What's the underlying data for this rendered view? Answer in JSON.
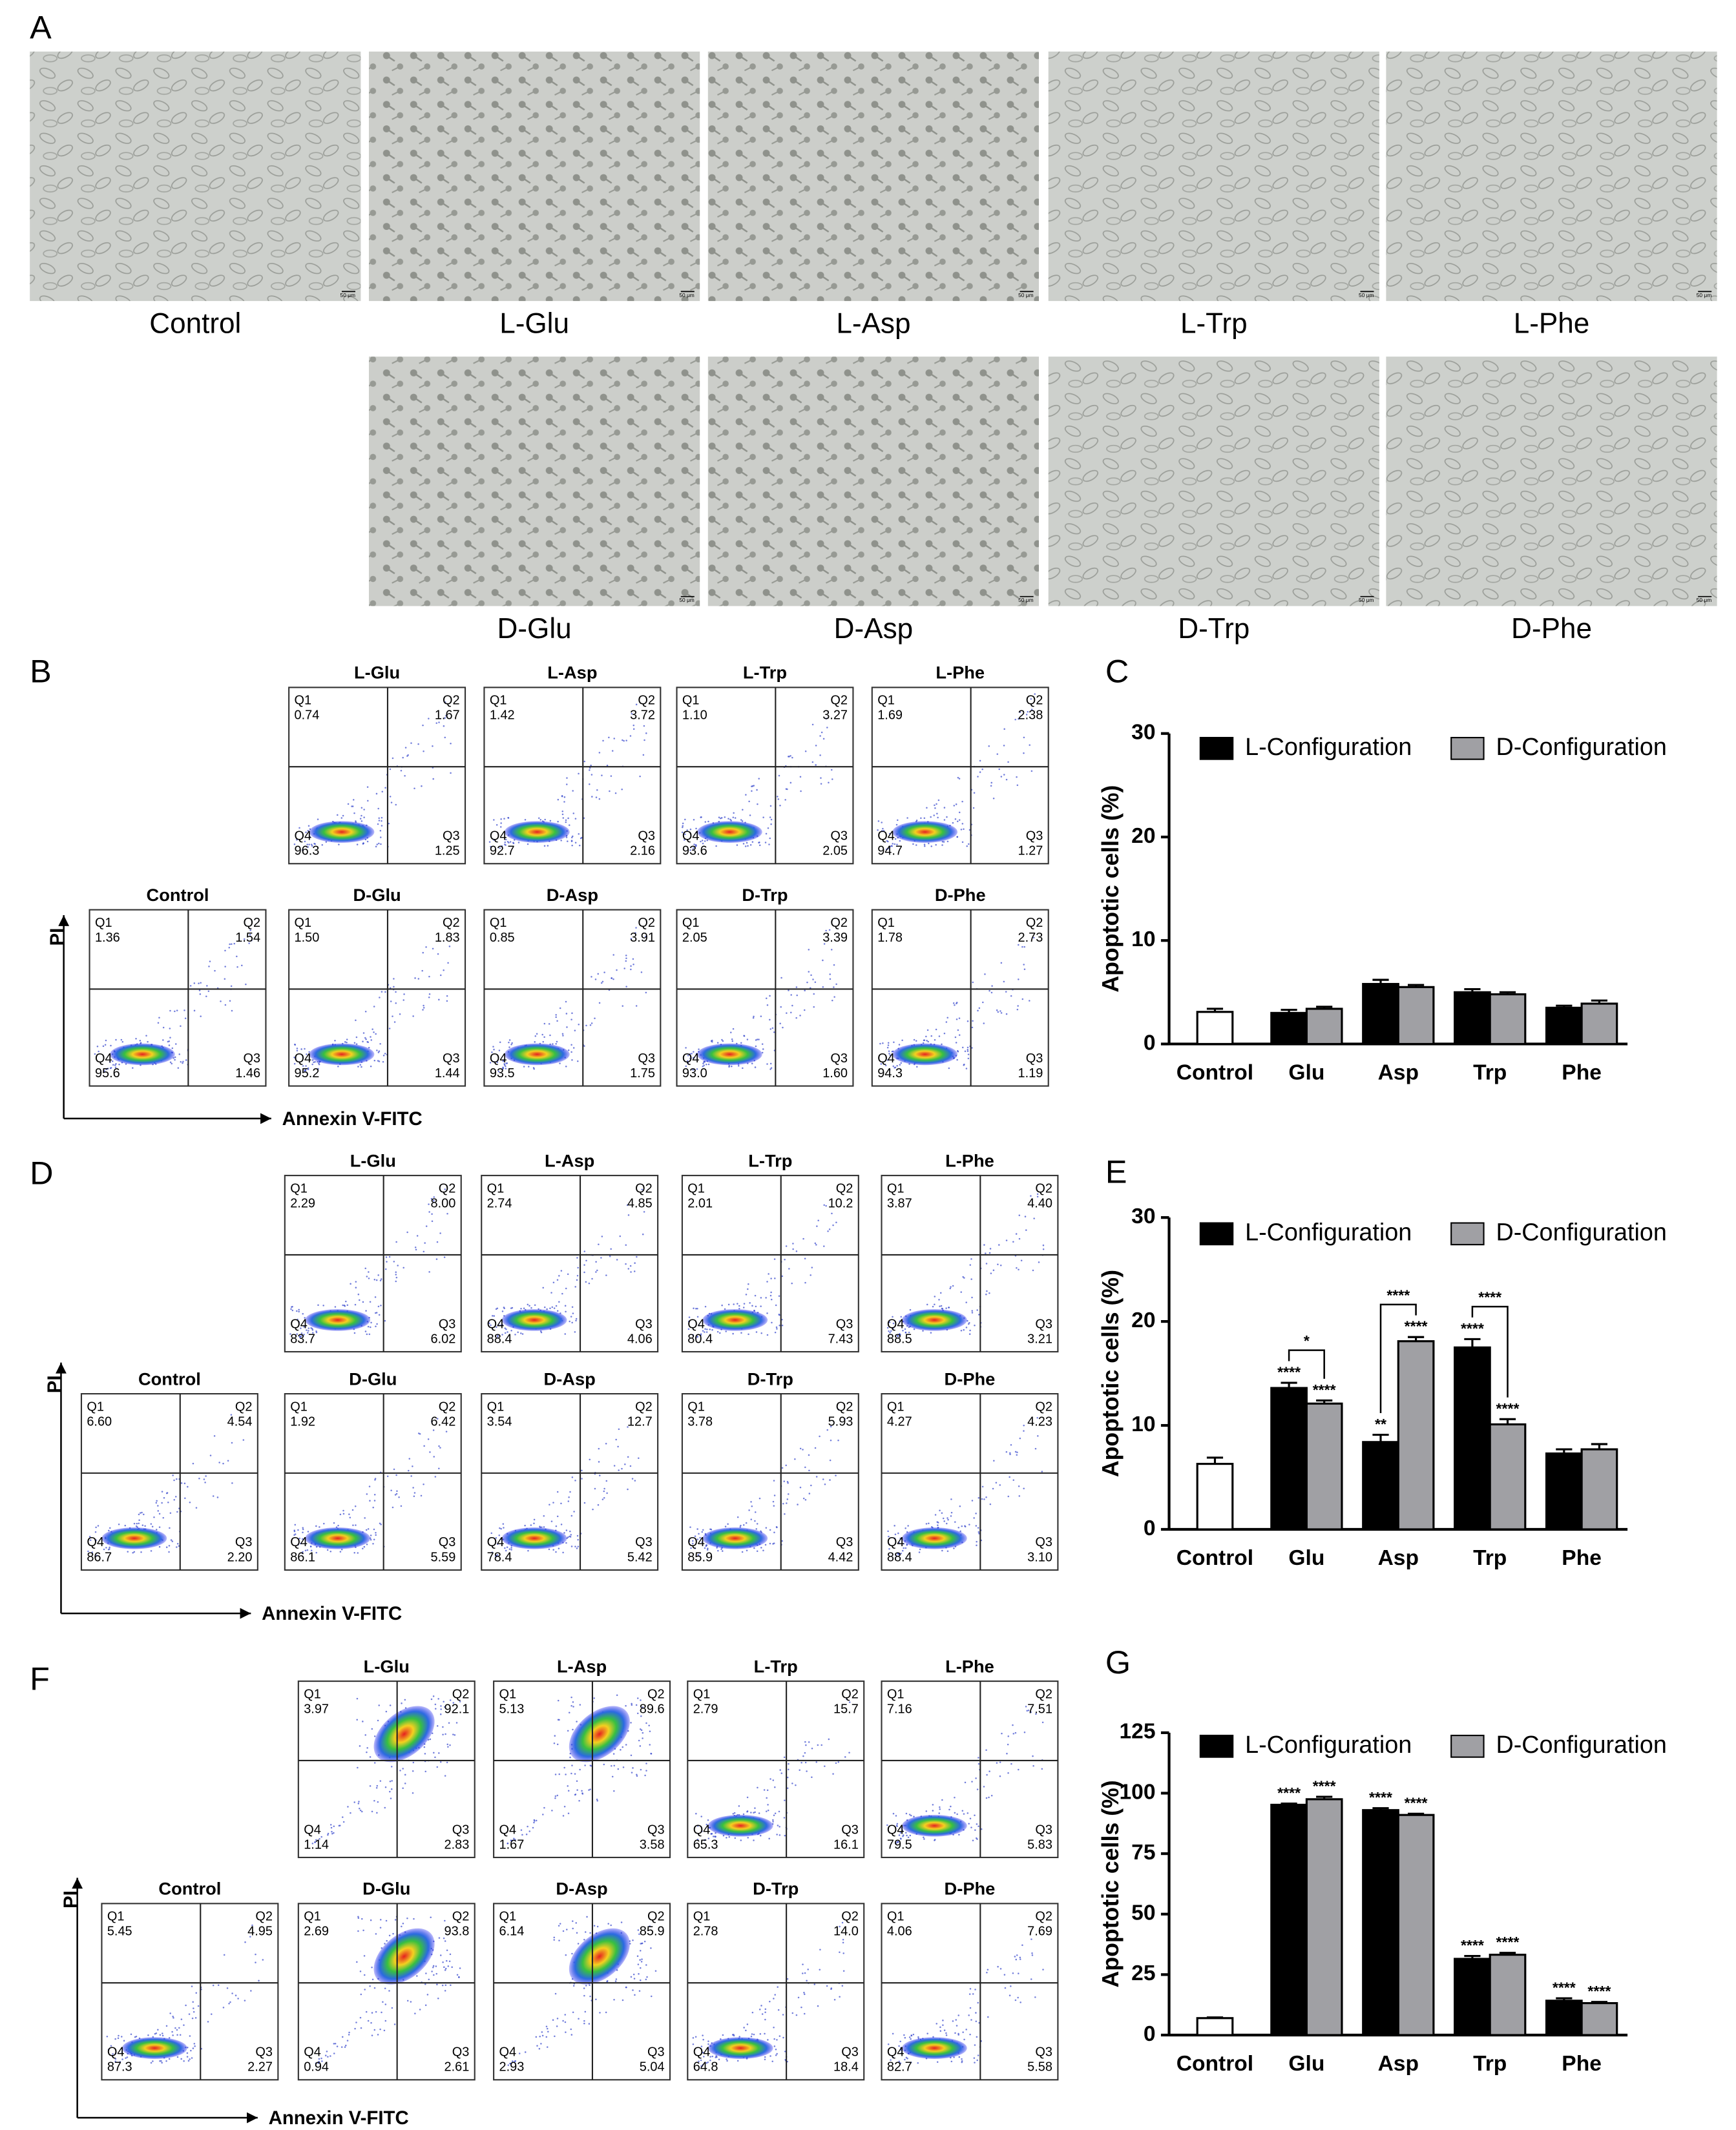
{
  "panel_labels": [
    "A",
    "B",
    "C",
    "D",
    "E",
    "F",
    "G"
  ],
  "micrographs": {
    "row1": [
      "Control",
      "L-Glu",
      "L-Asp",
      "L-Trp",
      "L-Phe"
    ],
    "row2": [
      "D-Glu",
      "D-Asp",
      "D-Trp",
      "D-Phe"
    ],
    "scale_bar": "50 μm"
  },
  "quadrant_names": [
    "Q1",
    "Q2",
    "Q3",
    "Q4"
  ],
  "flow": [
    {
      "y_label": "PI",
      "x_label": "Annexin V-FITC",
      "rows": [
        [
          {
            "title": "L-Glu",
            "Q1": "0.74",
            "Q2": "1.67",
            "Q3": "1.25",
            "Q4": "96.3"
          },
          {
            "title": "L-Asp",
            "Q1": "1.42",
            "Q2": "3.72",
            "Q3": "2.16",
            "Q4": "92.7"
          },
          {
            "title": "L-Trp",
            "Q1": "1.10",
            "Q2": "3.27",
            "Q3": "2.05",
            "Q4": "93.6"
          },
          {
            "title": "L-Phe",
            "Q1": "1.69",
            "Q2": "2.38",
            "Q3": "1.27",
            "Q4": "94.7"
          }
        ],
        [
          {
            "title": "Control",
            "Q1": "1.36",
            "Q2": "1.54",
            "Q3": "1.46",
            "Q4": "95.6"
          },
          {
            "title": "D-Glu",
            "Q1": "1.50",
            "Q2": "1.83",
            "Q3": "1.44",
            "Q4": "95.2"
          },
          {
            "title": "D-Asp",
            "Q1": "0.85",
            "Q2": "3.91",
            "Q3": "1.75",
            "Q4": "93.5"
          },
          {
            "title": "D-Trp",
            "Q1": "2.05",
            "Q2": "3.39",
            "Q3": "1.60",
            "Q4": "93.0"
          },
          {
            "title": "D-Phe",
            "Q1": "1.78",
            "Q2": "2.73",
            "Q3": "1.19",
            "Q4": "94.3"
          }
        ]
      ]
    },
    {
      "y_label": "PI",
      "x_label": "Annexin V-FITC",
      "rows": [
        [
          {
            "title": "L-Glu",
            "Q1": "2.29",
            "Q2": "8.00",
            "Q3": "6.02",
            "Q4": "83.7"
          },
          {
            "title": "L-Asp",
            "Q1": "2.74",
            "Q2": "4.85",
            "Q3": "4.06",
            "Q4": "88.4"
          },
          {
            "title": "L-Trp",
            "Q1": "2.01",
            "Q2": "10.2",
            "Q3": "7.43",
            "Q4": "80.4"
          },
          {
            "title": "L-Phe",
            "Q1": "3.87",
            "Q2": "4.40",
            "Q3": "3.21",
            "Q4": "88.5"
          }
        ],
        [
          {
            "title": "Control",
            "Q1": "6.60",
            "Q2": "4.54",
            "Q3": "2.20",
            "Q4": "86.7"
          },
          {
            "title": "D-Glu",
            "Q1": "1.92",
            "Q2": "6.42",
            "Q3": "5.59",
            "Q4": "86.1"
          },
          {
            "title": "D-Asp",
            "Q1": "3.54",
            "Q2": "12.7",
            "Q3": "5.42",
            "Q4": "78.4"
          },
          {
            "title": "D-Trp",
            "Q1": "3.78",
            "Q2": "5.93",
            "Q3": "4.42",
            "Q4": "85.9"
          },
          {
            "title": "D-Phe",
            "Q1": "4.27",
            "Q2": "4.23",
            "Q3": "3.10",
            "Q4": "88.4"
          }
        ]
      ]
    },
    {
      "y_label": "PI",
      "x_label": "Annexin V-FITC",
      "rows": [
        [
          {
            "title": "L-Glu",
            "Q1": "3.97",
            "Q2": "92.1",
            "Q3": "2.83",
            "Q4": "1.14"
          },
          {
            "title": "L-Asp",
            "Q1": "5.13",
            "Q2": "89.6",
            "Q3": "3.58",
            "Q4": "1.67"
          },
          {
            "title": "L-Trp",
            "Q1": "2.79",
            "Q2": "15.7",
            "Q3": "16.1",
            "Q4": "65.3"
          },
          {
            "title": "L-Phe",
            "Q1": "7.16",
            "Q2": "7.51",
            "Q3": "5.83",
            "Q4": "79.5"
          }
        ],
        [
          {
            "title": "Control",
            "Q1": "5.45",
            "Q2": "4.95",
            "Q3": "2.27",
            "Q4": "87.3"
          },
          {
            "title": "D-Glu",
            "Q1": "2.69",
            "Q2": "93.8",
            "Q3": "2.61",
            "Q4": "0.94"
          },
          {
            "title": "D-Asp",
            "Q1": "6.14",
            "Q2": "85.9",
            "Q3": "5.04",
            "Q4": "2.93"
          },
          {
            "title": "D-Trp",
            "Q1": "2.78",
            "Q2": "14.0",
            "Q3": "18.4",
            "Q4": "64.8"
          },
          {
            "title": "D-Phe",
            "Q1": "4.06",
            "Q2": "7.69",
            "Q3": "5.58",
            "Q4": "82.7"
          }
        ]
      ]
    }
  ],
  "chart_data": [
    {
      "type": "bar",
      "y_label": "Apoptotic cells (%)",
      "categories": [
        "Control",
        "Glu",
        "Asp",
        "Trp",
        "Phe"
      ],
      "ylim": [
        0,
        30
      ],
      "yticks": [
        0,
        10,
        20,
        30
      ],
      "control": {
        "value": 3.1,
        "error": 0.3,
        "color": "#ffffff"
      },
      "series": [
        {
          "name": "L-Configuration",
          "color": "#000000",
          "values": [
            null,
            3.0,
            5.8,
            5.0,
            3.5
          ],
          "errors": [
            null,
            0.3,
            0.4,
            0.3,
            0.2
          ]
        },
        {
          "name": "D-Configuration",
          "color": "#a0a0a4",
          "values": [
            null,
            3.4,
            5.5,
            4.8,
            3.9
          ],
          "errors": [
            null,
            0.2,
            0.2,
            0.2,
            0.3
          ]
        }
      ]
    },
    {
      "type": "bar",
      "y_label": "Apoptotic cells (%)",
      "categories": [
        "Control",
        "Glu",
        "Asp",
        "Trp",
        "Phe"
      ],
      "ylim": [
        0,
        30
      ],
      "yticks": [
        0,
        10,
        20,
        30
      ],
      "control": {
        "value": 6.3,
        "error": 0.6,
        "color": "#ffffff"
      },
      "series": [
        {
          "name": "L-Configuration",
          "color": "#000000",
          "values": [
            null,
            13.6,
            8.4,
            17.5,
            7.3
          ],
          "errors": [
            null,
            0.5,
            0.7,
            0.8,
            0.4
          ],
          "sig": [
            null,
            "****",
            "**",
            "****",
            null
          ]
        },
        {
          "name": "D-Configuration",
          "color": "#a0a0a4",
          "values": [
            null,
            12.1,
            18.1,
            10.1,
            7.7
          ],
          "errors": [
            null,
            0.3,
            0.4,
            0.5,
            0.5
          ],
          "sig": [
            null,
            "****",
            "****",
            "****",
            null
          ]
        }
      ],
      "brackets": [
        {
          "category": "Glu",
          "label": "*"
        },
        {
          "category": "Asp",
          "label": "****"
        },
        {
          "category": "Trp",
          "label": "****"
        }
      ]
    },
    {
      "type": "bar",
      "y_label": "Apoptotic cells (%)",
      "categories": [
        "Control",
        "Glu",
        "Asp",
        "Trp",
        "Phe"
      ],
      "ylim": [
        0,
        125
      ],
      "yticks": [
        0,
        25,
        50,
        75,
        100,
        125
      ],
      "control": {
        "value": 7.0,
        "error": 0.3,
        "color": "#ffffff"
      },
      "series": [
        {
          "name": "L-Configuration",
          "color": "#000000",
          "values": [
            null,
            95.2,
            93.0,
            31.5,
            14.2
          ],
          "errors": [
            null,
            0.5,
            0.8,
            1.2,
            1.0
          ],
          "sig": [
            null,
            "****",
            "****",
            "****",
            "****"
          ]
        },
        {
          "name": "D-Configuration",
          "color": "#a0a0a4",
          "values": [
            null,
            97.5,
            91.0,
            33.2,
            13.2
          ],
          "errors": [
            null,
            1.0,
            0.5,
            0.8,
            0.5
          ],
          "sig": [
            null,
            "****",
            "****",
            "****",
            "****"
          ]
        }
      ]
    }
  ]
}
